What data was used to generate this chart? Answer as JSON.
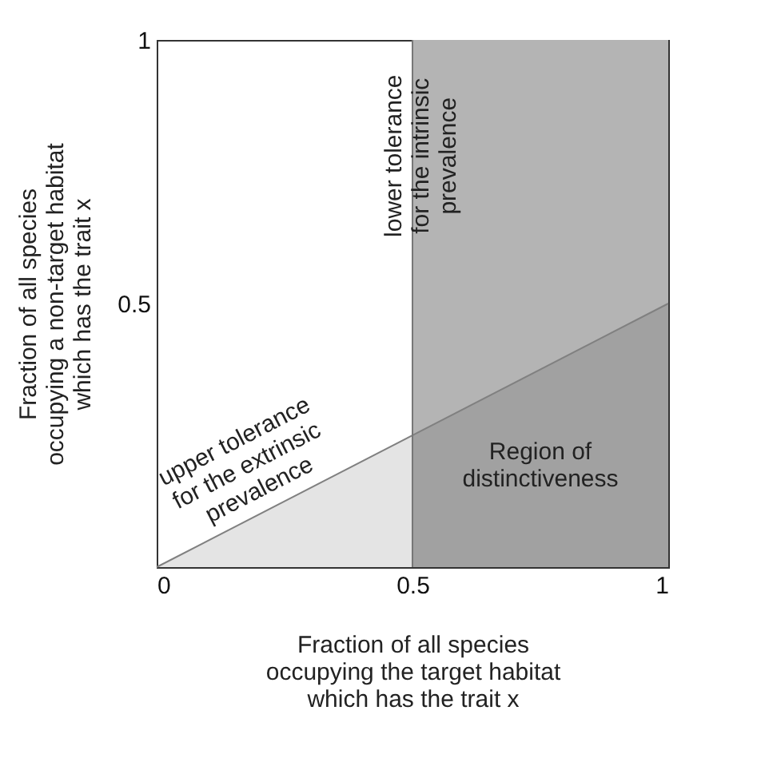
{
  "chart_data": {
    "type": "line",
    "xlabel": "Fraction of all species occupying the target habitat which has the trait x",
    "ylabel": "Fraction of all species occupying a non-target habitat which has the trait x",
    "x": [
      0,
      1
    ],
    "series": [
      {
        "type": "area",
        "color": "#d9d9d9",
        "values": [
          0,
          0.5
        ]
      }
    ],
    "xlim": [
      0,
      1
    ],
    "ylim": [
      0,
      1
    ],
    "xticks": [
      0,
      0.5,
      1
    ],
    "yticks": [
      0.5,
      1
    ],
    "grid": false,
    "legend": false,
    "bands": [
      {
        "axis": "x",
        "from": 0.5,
        "to": 1,
        "color": "#b4b4b4"
      }
    ],
    "ref_lines": [
      {
        "axis": "x",
        "value": 0.5,
        "label": "lower tolerance for the intrinsic prevalence",
        "color": "#777777"
      }
    ],
    "annotations": [
      {
        "text": "upper tolerance for the extrinsic prevalence",
        "x": 0.22,
        "y": 0.11
      },
      "Region of distinctiveness"
    ]
  }
}
